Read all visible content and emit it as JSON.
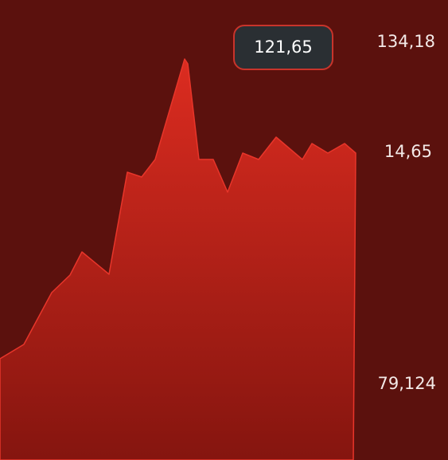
{
  "tooltip": {
    "label": "121,65"
  },
  "axis_labels": [
    "134,18",
    "14,65",
    "79,124"
  ]
}
